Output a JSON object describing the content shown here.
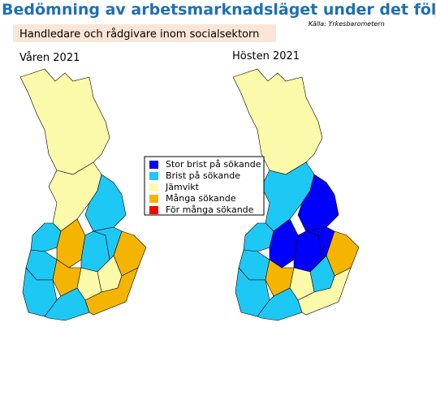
{
  "title": "Bedömning av arbetsmarknadsläget under det följande halvåret",
  "source": "Källa: Yrkesbarometern",
  "subtitle": "Handledare  och rådgivare  inom socialsektorn",
  "legend": [
    {
      "label": "Stor brist på sökande",
      "color": "#0000ff"
    },
    {
      "label": "Brist på sökande",
      "color": "#1ec8f5"
    },
    {
      "label": "Jämvikt",
      "color": "#fafaaa"
    },
    {
      "label": "Många sökande",
      "color": "#f5b400"
    },
    {
      "label": "För många sökande",
      "color": "#ff0000"
    }
  ],
  "maps": [
    {
      "label": "Våren 2021",
      "regions": [
        2,
        2,
        1,
        1,
        3,
        1,
        1,
        3,
        2,
        1,
        3,
        2,
        1,
        1,
        3
      ]
    },
    {
      "label": "Hösten 2021",
      "regions": [
        2,
        1,
        0,
        1,
        0,
        0,
        0,
        3,
        1,
        1,
        3,
        2,
        1,
        1,
        2
      ]
    }
  ]
}
